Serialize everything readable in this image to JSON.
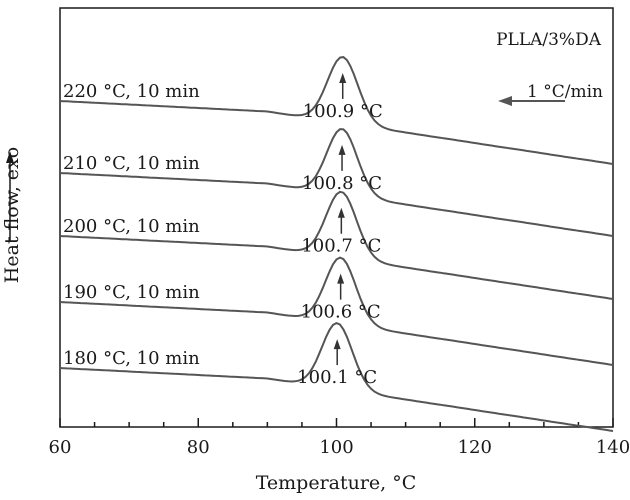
{
  "chart_data": {
    "type": "line",
    "title": "PLLA/3%DA",
    "xlabel": "Temperature, °C",
    "ylabel": "Heat flow, exo",
    "xlim": [
      60,
      140
    ],
    "xticks": [
      "60",
      "80",
      "100",
      "120",
      "140"
    ],
    "cooling_rate_label": "1 °C/min",
    "grid": false,
    "series": [
      {
        "name": "220 °C, 10 min",
        "peak_label": "100.9 °C",
        "peak_temperature": 100.9
      },
      {
        "name": "210 °C, 10 min",
        "peak_label": "100.8 °C",
        "peak_temperature": 100.8
      },
      {
        "name": "200 °C, 10 min",
        "peak_label": "100.7 °C",
        "peak_temperature": 100.7
      },
      {
        "name": "190 °C, 10 min",
        "peak_label": "100.6 °C",
        "peak_temperature": 100.6
      },
      {
        "name": "180 °C, 10 min",
        "peak_label": "100.1 °C",
        "peak_temperature": 100.1
      }
    ]
  }
}
